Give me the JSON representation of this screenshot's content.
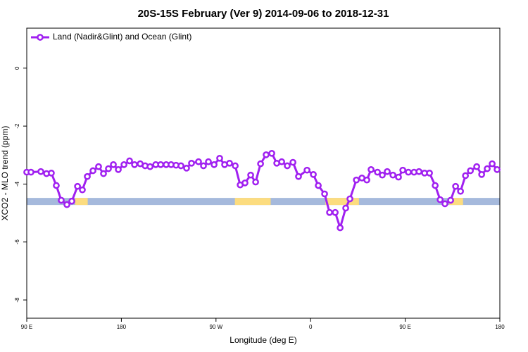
{
  "chart_data": {
    "type": "line",
    "title": "20S-15S February (Ver 9)   2014-09-06 to 2018-12-31",
    "xlabel": "Longitude (deg E)",
    "ylabel": "XCO2 - MLO trend (ppm)",
    "xlim": [
      90,
      540
    ],
    "ylim": [
      -8.63,
      1.38
    ],
    "xticks": [
      {
        "value": 90,
        "label": "90 E"
      },
      180,
      {
        "value": 270,
        "label": "90 W"
      },
      {
        "value": 360,
        "label": "0"
      },
      {
        "value": 450,
        "label": "90 E"
      },
      {
        "value": 540,
        "label": "180"
      }
    ],
    "yticks": [
      0,
      -2,
      -4,
      -6,
      -8
    ],
    "legend": "top-left",
    "series": [
      {
        "name": "Land (Nadir&Glint) and Ocean (Glint)",
        "color": "#a020f0",
        "x": [
          90,
          94,
          103.4,
          108.8,
          113.4,
          118.1,
          122.8,
          128.2,
          132.9,
          138.3,
          142.9,
          147.6,
          153,
          158.3,
          163,
          167.7,
          172.4,
          177.1,
          182.5,
          187.8,
          192.5,
          197.9,
          202.6,
          207.3,
          212.7,
          217.4,
          222.6,
          227.3,
          232,
          236.7,
          242,
          246.7,
          253.4,
          258.1,
          262.8,
          268.2,
          273.5,
          278.2,
          282.9,
          288.3,
          293,
          297.6,
          303,
          307.7,
          312.4,
          317.7,
          323.1,
          327.8,
          332.5,
          337.8,
          343.2,
          348.5,
          356.6,
          362.6,
          367.3,
          373.3,
          378,
          383.4,
          388.1,
          393.4,
          397.4,
          403.5,
          408.8,
          413.5,
          417.5,
          423.6,
          428.2,
          432.9,
          438.3,
          443.6,
          447.7,
          453,
          458.4,
          463.1,
          468.4,
          473.1,
          478.5,
          483.2,
          487.8,
          493.2,
          497.9,
          502.6,
          507.3,
          512,
          518,
          522.7,
          528,
          532.7,
          537.4
        ],
        "values": [
          -3.59,
          -3.59,
          -3.57,
          -3.64,
          -3.62,
          -4.05,
          -4.56,
          -4.71,
          -4.59,
          -4.08,
          -4.2,
          -3.74,
          -3.54,
          -3.4,
          -3.64,
          -3.47,
          -3.33,
          -3.5,
          -3.33,
          -3.2,
          -3.33,
          -3.3,
          -3.37,
          -3.4,
          -3.33,
          -3.33,
          -3.33,
          -3.33,
          -3.35,
          -3.37,
          -3.45,
          -3.28,
          -3.23,
          -3.37,
          -3.23,
          -3.33,
          -3.11,
          -3.33,
          -3.28,
          -3.37,
          -4.03,
          -3.96,
          -3.69,
          -3.93,
          -3.3,
          -2.99,
          -2.94,
          -3.28,
          -3.23,
          -3.37,
          -3.25,
          -3.74,
          -3.52,
          -3.67,
          -4.05,
          -4.34,
          -4.98,
          -4.98,
          -5.51,
          -4.83,
          -4.51,
          -3.86,
          -3.79,
          -3.86,
          -3.5,
          -3.59,
          -3.69,
          -3.57,
          -3.69,
          -3.76,
          -3.52,
          -3.59,
          -3.59,
          -3.57,
          -3.62,
          -3.62,
          -4.05,
          -4.54,
          -4.68,
          -4.56,
          -4.08,
          -4.25,
          -3.71,
          -3.54,
          -3.4,
          -3.67,
          -3.47,
          -3.3,
          -3.5
        ]
      }
    ],
    "surface_band": {
      "value": -4.6,
      "color": "#a5b9dc",
      "segments": [
        {
          "from": 136,
          "to": 148,
          "color": "#fcdc7f"
        },
        {
          "from": 288,
          "to": 322,
          "color": "#fcdc7f"
        },
        {
          "from": 374,
          "to": 406,
          "color": "#fcdc7f"
        },
        {
          "from": 492,
          "to": 505,
          "color": "#fcdc7f"
        }
      ]
    }
  }
}
